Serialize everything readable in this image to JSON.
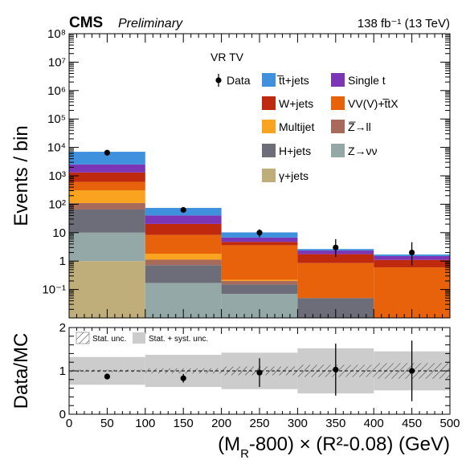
{
  "header": {
    "experiment": "CMS",
    "status": "Preliminary",
    "lumi_text": "138 fb⁻¹ (13 TeV)"
  },
  "chart_data": [
    {
      "type": "bar",
      "stacked": true,
      "log_y": true,
      "region_label": "VR TV",
      "ylabel": "Events / bin",
      "xlabel": "",
      "bin_edges": [
        0,
        100,
        200,
        300,
        400,
        500
      ],
      "ylim": [
        0.01,
        100000000
      ],
      "y_tick_labels": [
        "10⁻¹",
        "1",
        "10",
        "10²",
        "10³",
        "10⁴",
        "10⁵",
        "10⁶",
        "10⁷",
        "10⁸"
      ],
      "y_tick_values": [
        0.1,
        1,
        10,
        100,
        1000,
        10000,
        100000,
        1000000,
        10000000,
        100000000
      ],
      "series": [
        {
          "name": "γ+jets",
          "color": "#bfae7a",
          "values": [
            1.0,
            0,
            0,
            0,
            0
          ]
        },
        {
          "name": "Z→νν",
          "color": "#95a8a8",
          "values": [
            9.0,
            0.17,
            0.07,
            0,
            0
          ]
        },
        {
          "name": "H+jets",
          "color": "#6d6d79",
          "values": [
            55,
            0.55,
            0.08,
            0.05,
            0
          ]
        },
        {
          "name": "Z̅→ll",
          "color": "#a86a5a",
          "values": [
            45,
            0.4,
            0.05,
            0,
            0
          ]
        },
        {
          "name": "Multijet",
          "color": "#f9a321",
          "values": [
            200,
            0.7,
            0.02,
            0,
            0
          ]
        },
        {
          "name": "VV(V)+t̅tX",
          "color": "#e8620b",
          "values": [
            300,
            6.5,
            3.4,
            0.8,
            0.6
          ]
        },
        {
          "name": "W+jets",
          "color": "#bf2a0e",
          "values": [
            700,
            12,
            1.1,
            0.9,
            0.5
          ]
        },
        {
          "name": "Single t",
          "color": "#7b35b5",
          "values": [
            1200,
            20,
            2.0,
            0.6,
            0.4
          ]
        },
        {
          "name": "t̅t+jets",
          "color": "#3f91dd",
          "values": [
            4500,
            34,
            3.5,
            0.3,
            0.2
          ]
        }
      ],
      "data_points": {
        "name": "Data",
        "x": [
          50,
          150,
          250,
          350,
          450
        ],
        "y": [
          6500,
          63,
          10,
          3.0,
          2.0
        ],
        "yerr_low": [
          0,
          8,
          3.1,
          1.6,
          1.3
        ],
        "yerr_high": [
          0,
          8,
          3.1,
          2.9,
          2.6
        ]
      }
    },
    {
      "type": "scatter",
      "ylabel": "Data/MC",
      "xlabel": "(M_R-800) × (R²-0.08) (GeV)",
      "xlim": [
        0,
        500
      ],
      "ylim": [
        0,
        2
      ],
      "x_tick_labels": [
        "0",
        "50",
        "100",
        "150",
        "200",
        "250",
        "300",
        "350",
        "400",
        "450",
        "500"
      ],
      "y_tick_labels": [
        "0",
        "1",
        "2"
      ],
      "band_labels": [
        "Stat. unc.",
        "Stat. + syst. unc."
      ],
      "stat_unc": [
        0.03,
        0.06,
        0.1,
        0.14,
        0.18
      ],
      "total_unc": [
        0.32,
        0.37,
        0.42,
        0.52,
        0.45
      ],
      "points": {
        "x": [
          50,
          150,
          250,
          350,
          450
        ],
        "y": [
          0.87,
          0.83,
          0.96,
          1.03,
          1.0
        ],
        "yerr": [
          0.02,
          0.1,
          0.33,
          0.6,
          0.7
        ]
      }
    }
  ]
}
